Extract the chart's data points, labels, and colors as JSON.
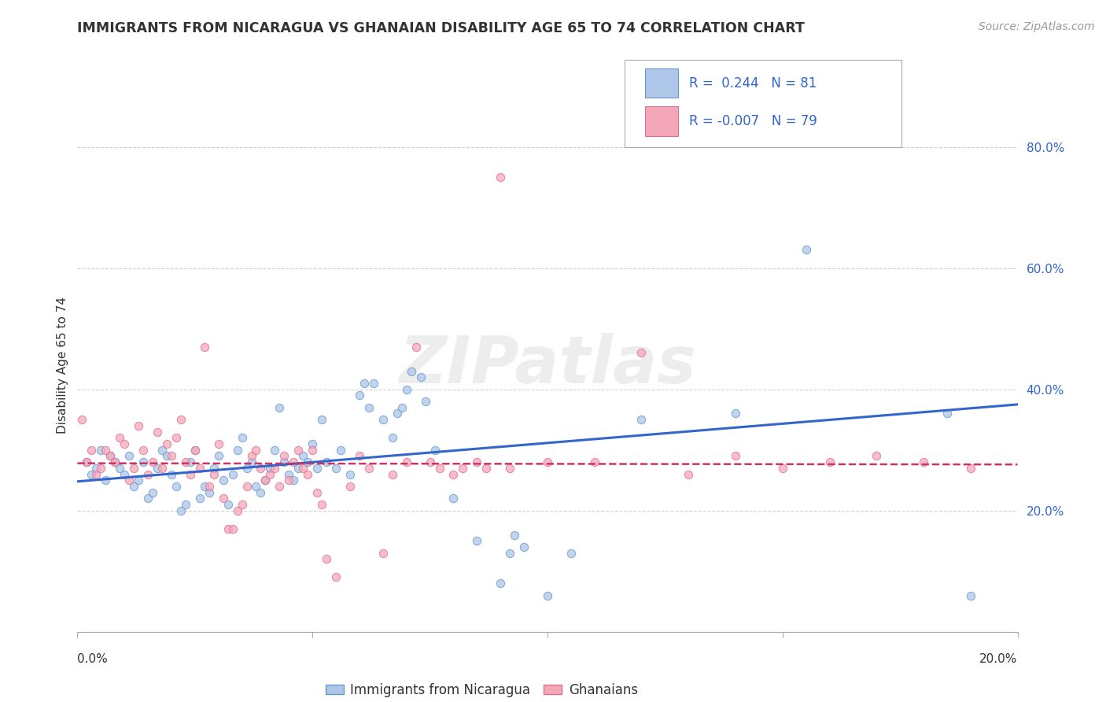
{
  "title": "IMMIGRANTS FROM NICARAGUA VS GHANAIAN DISABILITY AGE 65 TO 74 CORRELATION CHART",
  "source": "Source: ZipAtlas.com",
  "ylabel": "Disability Age 65 to 74",
  "yticks_labels": [
    "20.0%",
    "40.0%",
    "60.0%",
    "80.0%"
  ],
  "ytick_vals": [
    0.2,
    0.4,
    0.6,
    0.8
  ],
  "xlim": [
    0.0,
    0.2
  ],
  "ylim": [
    0.0,
    0.88
  ],
  "watermark": "ZIPatlas",
  "legend_entries": [
    {
      "label": "Immigrants from Nicaragua",
      "R": "0.244",
      "N": "81",
      "color": "#aec6e8"
    },
    {
      "label": "Ghanaians",
      "R": "-0.007",
      "N": "79",
      "color": "#f4a7b9"
    }
  ],
  "blue_scatter": [
    [
      0.002,
      0.28
    ],
    [
      0.003,
      0.26
    ],
    [
      0.004,
      0.27
    ],
    [
      0.005,
      0.3
    ],
    [
      0.006,
      0.25
    ],
    [
      0.007,
      0.29
    ],
    [
      0.008,
      0.28
    ],
    [
      0.009,
      0.27
    ],
    [
      0.01,
      0.26
    ],
    [
      0.011,
      0.29
    ],
    [
      0.012,
      0.24
    ],
    [
      0.013,
      0.25
    ],
    [
      0.014,
      0.28
    ],
    [
      0.015,
      0.22
    ],
    [
      0.016,
      0.23
    ],
    [
      0.017,
      0.27
    ],
    [
      0.018,
      0.3
    ],
    [
      0.019,
      0.29
    ],
    [
      0.02,
      0.26
    ],
    [
      0.021,
      0.24
    ],
    [
      0.022,
      0.2
    ],
    [
      0.023,
      0.21
    ],
    [
      0.024,
      0.28
    ],
    [
      0.025,
      0.3
    ],
    [
      0.026,
      0.22
    ],
    [
      0.027,
      0.24
    ],
    [
      0.028,
      0.23
    ],
    [
      0.029,
      0.27
    ],
    [
      0.03,
      0.29
    ],
    [
      0.031,
      0.25
    ],
    [
      0.032,
      0.21
    ],
    [
      0.033,
      0.26
    ],
    [
      0.034,
      0.3
    ],
    [
      0.035,
      0.32
    ],
    [
      0.036,
      0.27
    ],
    [
      0.037,
      0.28
    ],
    [
      0.038,
      0.24
    ],
    [
      0.039,
      0.23
    ],
    [
      0.04,
      0.25
    ],
    [
      0.041,
      0.27
    ],
    [
      0.042,
      0.3
    ],
    [
      0.043,
      0.37
    ],
    [
      0.044,
      0.28
    ],
    [
      0.045,
      0.26
    ],
    [
      0.046,
      0.25
    ],
    [
      0.047,
      0.27
    ],
    [
      0.048,
      0.29
    ],
    [
      0.049,
      0.28
    ],
    [
      0.05,
      0.31
    ],
    [
      0.051,
      0.27
    ],
    [
      0.052,
      0.35
    ],
    [
      0.053,
      0.28
    ],
    [
      0.055,
      0.27
    ],
    [
      0.056,
      0.3
    ],
    [
      0.058,
      0.26
    ],
    [
      0.06,
      0.39
    ],
    [
      0.061,
      0.41
    ],
    [
      0.062,
      0.37
    ],
    [
      0.063,
      0.41
    ],
    [
      0.065,
      0.35
    ],
    [
      0.067,
      0.32
    ],
    [
      0.068,
      0.36
    ],
    [
      0.069,
      0.37
    ],
    [
      0.07,
      0.4
    ],
    [
      0.071,
      0.43
    ],
    [
      0.073,
      0.42
    ],
    [
      0.074,
      0.38
    ],
    [
      0.076,
      0.3
    ],
    [
      0.08,
      0.22
    ],
    [
      0.085,
      0.15
    ],
    [
      0.09,
      0.08
    ],
    [
      0.092,
      0.13
    ],
    [
      0.093,
      0.16
    ],
    [
      0.095,
      0.14
    ],
    [
      0.1,
      0.06
    ],
    [
      0.105,
      0.13
    ],
    [
      0.12,
      0.35
    ],
    [
      0.14,
      0.36
    ],
    [
      0.155,
      0.63
    ],
    [
      0.185,
      0.36
    ],
    [
      0.19,
      0.06
    ]
  ],
  "pink_scatter": [
    [
      0.001,
      0.35
    ],
    [
      0.002,
      0.28
    ],
    [
      0.003,
      0.3
    ],
    [
      0.004,
      0.26
    ],
    [
      0.005,
      0.27
    ],
    [
      0.006,
      0.3
    ],
    [
      0.007,
      0.29
    ],
    [
      0.008,
      0.28
    ],
    [
      0.009,
      0.32
    ],
    [
      0.01,
      0.31
    ],
    [
      0.011,
      0.25
    ],
    [
      0.012,
      0.27
    ],
    [
      0.013,
      0.34
    ],
    [
      0.014,
      0.3
    ],
    [
      0.015,
      0.26
    ],
    [
      0.016,
      0.28
    ],
    [
      0.017,
      0.33
    ],
    [
      0.018,
      0.27
    ],
    [
      0.019,
      0.31
    ],
    [
      0.02,
      0.29
    ],
    [
      0.021,
      0.32
    ],
    [
      0.022,
      0.35
    ],
    [
      0.023,
      0.28
    ],
    [
      0.024,
      0.26
    ],
    [
      0.025,
      0.3
    ],
    [
      0.026,
      0.27
    ],
    [
      0.027,
      0.47
    ],
    [
      0.028,
      0.24
    ],
    [
      0.029,
      0.26
    ],
    [
      0.03,
      0.31
    ],
    [
      0.031,
      0.22
    ],
    [
      0.032,
      0.17
    ],
    [
      0.033,
      0.17
    ],
    [
      0.034,
      0.2
    ],
    [
      0.035,
      0.21
    ],
    [
      0.036,
      0.24
    ],
    [
      0.037,
      0.29
    ],
    [
      0.038,
      0.3
    ],
    [
      0.039,
      0.27
    ],
    [
      0.04,
      0.25
    ],
    [
      0.041,
      0.26
    ],
    [
      0.042,
      0.27
    ],
    [
      0.043,
      0.24
    ],
    [
      0.044,
      0.29
    ],
    [
      0.045,
      0.25
    ],
    [
      0.046,
      0.28
    ],
    [
      0.047,
      0.3
    ],
    [
      0.048,
      0.27
    ],
    [
      0.049,
      0.26
    ],
    [
      0.05,
      0.3
    ],
    [
      0.051,
      0.23
    ],
    [
      0.052,
      0.21
    ],
    [
      0.053,
      0.12
    ],
    [
      0.055,
      0.09
    ],
    [
      0.058,
      0.24
    ],
    [
      0.06,
      0.29
    ],
    [
      0.062,
      0.27
    ],
    [
      0.065,
      0.13
    ],
    [
      0.067,
      0.26
    ],
    [
      0.07,
      0.28
    ],
    [
      0.072,
      0.47
    ],
    [
      0.075,
      0.28
    ],
    [
      0.077,
      0.27
    ],
    [
      0.08,
      0.26
    ],
    [
      0.082,
      0.27
    ],
    [
      0.085,
      0.28
    ],
    [
      0.087,
      0.27
    ],
    [
      0.09,
      0.75
    ],
    [
      0.092,
      0.27
    ],
    [
      0.1,
      0.28
    ],
    [
      0.11,
      0.28
    ],
    [
      0.12,
      0.46
    ],
    [
      0.13,
      0.26
    ],
    [
      0.14,
      0.29
    ],
    [
      0.15,
      0.27
    ],
    [
      0.16,
      0.28
    ],
    [
      0.17,
      0.29
    ],
    [
      0.18,
      0.28
    ],
    [
      0.19,
      0.27
    ]
  ],
  "blue_line_x": [
    0.0,
    0.2
  ],
  "blue_line_y": [
    0.248,
    0.375
  ],
  "pink_line_x": [
    0.0,
    0.2
  ],
  "pink_line_y": [
    0.278,
    0.276
  ],
  "scatter_size": 55,
  "scatter_alpha": 0.75,
  "scatter_blue_color": "#aec6e8",
  "scatter_blue_edge": "#6699cc",
  "scatter_pink_color": "#f4a7b9",
  "scatter_pink_edge": "#e07090",
  "line_blue_color": "#3366cc",
  "line_pink_color": "#cc3366",
  "grid_color": "#cccccc",
  "background_color": "#ffffff",
  "title_fontsize": 12.5,
  "axis_label_fontsize": 11,
  "tick_fontsize": 11,
  "legend_fontsize": 12,
  "source_fontsize": 10
}
